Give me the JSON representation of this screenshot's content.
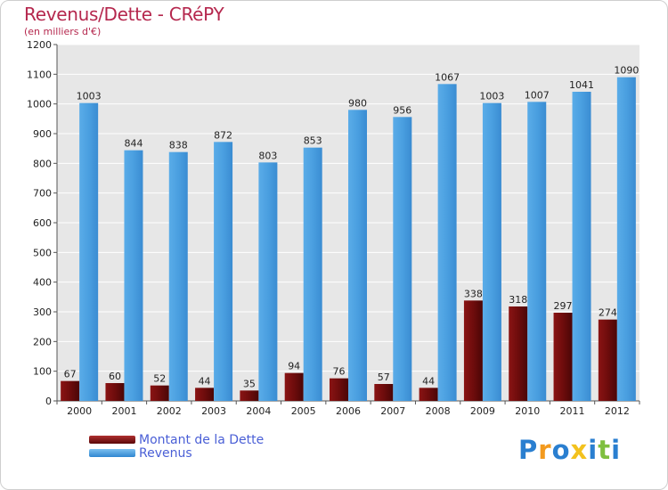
{
  "chart_data": {
    "type": "bar",
    "title": "Revenus/Dette - CRéPY",
    "subtitle": "(en milliers d'€)",
    "categories": [
      "2000",
      "2001",
      "2002",
      "2003",
      "2004",
      "2005",
      "2006",
      "2007",
      "2008",
      "2009",
      "2010",
      "2011",
      "2012"
    ],
    "series": [
      {
        "name": "Montant de la Dette",
        "color": "#7a1010",
        "values": [
          67,
          60,
          52,
          44,
          35,
          94,
          76,
          57,
          44,
          338,
          318,
          297,
          274
        ]
      },
      {
        "name": "Revenus",
        "color": "#4a9fe0",
        "values": [
          1003,
          844,
          838,
          872,
          803,
          853,
          980,
          956,
          1067,
          1003,
          1007,
          1041,
          1090
        ]
      }
    ],
    "ylim": [
      0,
      1200
    ],
    "yticks": [
      0,
      100,
      200,
      300,
      400,
      500,
      600,
      700,
      800,
      900,
      1000,
      1100,
      1200
    ],
    "grid": true,
    "legend": "bottom-left"
  },
  "logo": {
    "letters": [
      {
        "ch": "P",
        "color": "#2a7fd0"
      },
      {
        "ch": "r",
        "color": "#f39a1e"
      },
      {
        "ch": "o",
        "color": "#2a7fd0"
      },
      {
        "ch": "x",
        "color": "#f3c21e"
      },
      {
        "ch": "i",
        "color": "#2a7fd0"
      },
      {
        "ch": "t",
        "color": "#7fbf3f"
      },
      {
        "ch": "i",
        "color": "#2a7fd0"
      }
    ]
  }
}
